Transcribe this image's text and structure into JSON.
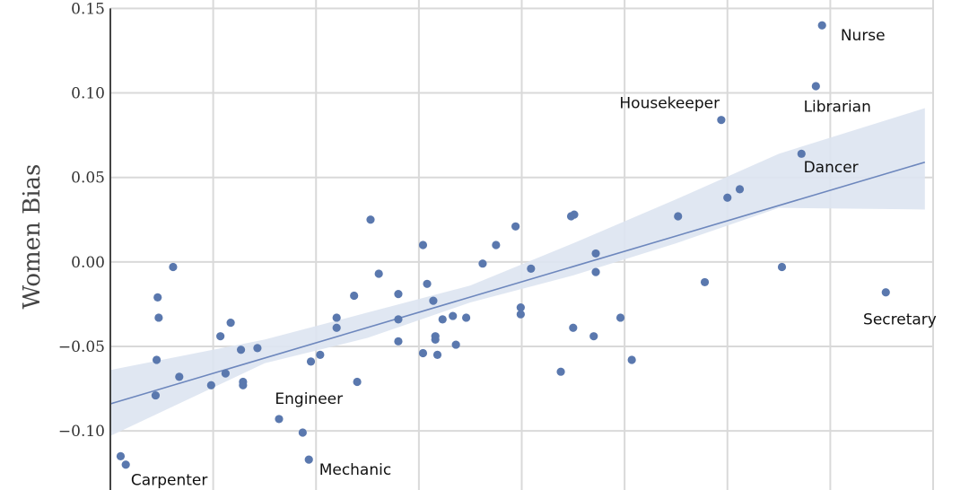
{
  "chart_data": {
    "type": "scatter",
    "title": "",
    "xlabel": "",
    "ylabel": "Women Bias",
    "ylim": [
      -0.135,
      0.155
    ],
    "xlim": [
      0,
      8
    ],
    "y_ticks": [
      0.15,
      0.1,
      0.05,
      0.0,
      -0.05,
      -0.1
    ],
    "y_tick_labels": [
      "0.15",
      "0.10",
      "0.05",
      "0.00",
      "−0.05",
      "−0.10"
    ],
    "grid": true,
    "legend": "none",
    "colors": {
      "points": "#5a78ae",
      "fit_line": "#6d87bd",
      "confidence_band": "#dde4f1",
      "grid": "#d9d9d9"
    },
    "points": [
      {
        "x": 0.1,
        "y": -0.115
      },
      {
        "x": 0.15,
        "y": -0.12
      },
      {
        "x": 0.44,
        "y": -0.079
      },
      {
        "x": 0.45,
        "y": -0.058
      },
      {
        "x": 0.46,
        "y": -0.021
      },
      {
        "x": 0.47,
        "y": -0.033
      },
      {
        "x": 0.61,
        "y": -0.003
      },
      {
        "x": 0.67,
        "y": -0.068
      },
      {
        "x": 0.98,
        "y": -0.073
      },
      {
        "x": 1.07,
        "y": -0.044
      },
      {
        "x": 1.12,
        "y": -0.066
      },
      {
        "x": 1.17,
        "y": -0.036
      },
      {
        "x": 1.27,
        "y": -0.052
      },
      {
        "x": 1.29,
        "y": -0.071
      },
      {
        "x": 1.29,
        "y": -0.073
      },
      {
        "x": 1.43,
        "y": -0.051
      },
      {
        "x": 1.64,
        "y": -0.093
      },
      {
        "x": 1.87,
        "y": -0.101
      },
      {
        "x": 1.93,
        "y": -0.117
      },
      {
        "x": 1.95,
        "y": -0.059
      },
      {
        "x": 2.04,
        "y": -0.055
      },
      {
        "x": 2.2,
        "y": -0.033
      },
      {
        "x": 2.2,
        "y": -0.039
      },
      {
        "x": 2.37,
        "y": -0.02
      },
      {
        "x": 2.4,
        "y": -0.071
      },
      {
        "x": 2.53,
        "y": 0.025
      },
      {
        "x": 2.61,
        "y": -0.007
      },
      {
        "x": 2.8,
        "y": -0.019
      },
      {
        "x": 2.8,
        "y": -0.034
      },
      {
        "x": 2.8,
        "y": -0.047
      },
      {
        "x": 3.04,
        "y": 0.01
      },
      {
        "x": 3.04,
        "y": -0.054
      },
      {
        "x": 3.08,
        "y": -0.013
      },
      {
        "x": 3.14,
        "y": -0.023
      },
      {
        "x": 3.16,
        "y": -0.046
      },
      {
        "x": 3.16,
        "y": -0.044
      },
      {
        "x": 3.18,
        "y": -0.055
      },
      {
        "x": 3.23,
        "y": -0.034
      },
      {
        "x": 3.33,
        "y": -0.032
      },
      {
        "x": 3.36,
        "y": -0.049
      },
      {
        "x": 3.46,
        "y": -0.033
      },
      {
        "x": 3.62,
        "y": -0.001
      },
      {
        "x": 3.75,
        "y": 0.01
      },
      {
        "x": 3.94,
        "y": 0.021
      },
      {
        "x": 3.99,
        "y": -0.027
      },
      {
        "x": 3.99,
        "y": -0.031
      },
      {
        "x": 4.09,
        "y": -0.004
      },
      {
        "x": 4.38,
        "y": -0.065
      },
      {
        "x": 4.48,
        "y": 0.027
      },
      {
        "x": 4.51,
        "y": 0.028
      },
      {
        "x": 4.5,
        "y": -0.039
      },
      {
        "x": 4.7,
        "y": -0.044
      },
      {
        "x": 4.72,
        "y": 0.005
      },
      {
        "x": 4.72,
        "y": -0.006
      },
      {
        "x": 4.96,
        "y": -0.033
      },
      {
        "x": 5.07,
        "y": -0.058
      },
      {
        "x": 5.52,
        "y": 0.027
      },
      {
        "x": 5.78,
        "y": -0.012
      },
      {
        "x": 5.94,
        "y": 0.084
      },
      {
        "x": 6.0,
        "y": 0.038
      },
      {
        "x": 6.12,
        "y": 0.043
      },
      {
        "x": 6.53,
        "y": -0.003
      },
      {
        "x": 6.72,
        "y": 0.064
      },
      {
        "x": 6.86,
        "y": 0.104
      },
      {
        "x": 6.92,
        "y": 0.14
      },
      {
        "x": 7.54,
        "y": -0.018
      }
    ],
    "fit_line": {
      "x": [
        0.0,
        7.92
      ],
      "y": [
        -0.084,
        0.059
      ]
    },
    "confidence_band": {
      "x": [
        0.0,
        1.5,
        2.5,
        3.5,
        4.5,
        5.5,
        6.5,
        7.92
      ],
      "upper": [
        -0.064,
        -0.046,
        -0.03,
        -0.014,
        0.011,
        0.037,
        0.064,
        0.091
      ],
      "lower": [
        -0.103,
        -0.06,
        -0.045,
        -0.024,
        -0.008,
        0.011,
        0.032,
        0.031
      ]
    },
    "annotations": [
      {
        "text": "Nurse",
        "x": 7.1,
        "y": 0.131
      },
      {
        "text": "Housekeeper",
        "x": 4.95,
        "y": 0.091
      },
      {
        "text": "Librarian",
        "x": 6.74,
        "y": 0.089
      },
      {
        "text": "Dancer",
        "x": 6.74,
        "y": 0.053
      },
      {
        "text": "Secretary",
        "x": 7.32,
        "y": -0.037
      },
      {
        "text": "Engineer",
        "x": 1.6,
        "y": -0.084
      },
      {
        "text": "Mechanic",
        "x": 2.03,
        "y": -0.126
      },
      {
        "text": "Carpenter",
        "x": 0.2,
        "y": -0.132
      }
    ]
  }
}
